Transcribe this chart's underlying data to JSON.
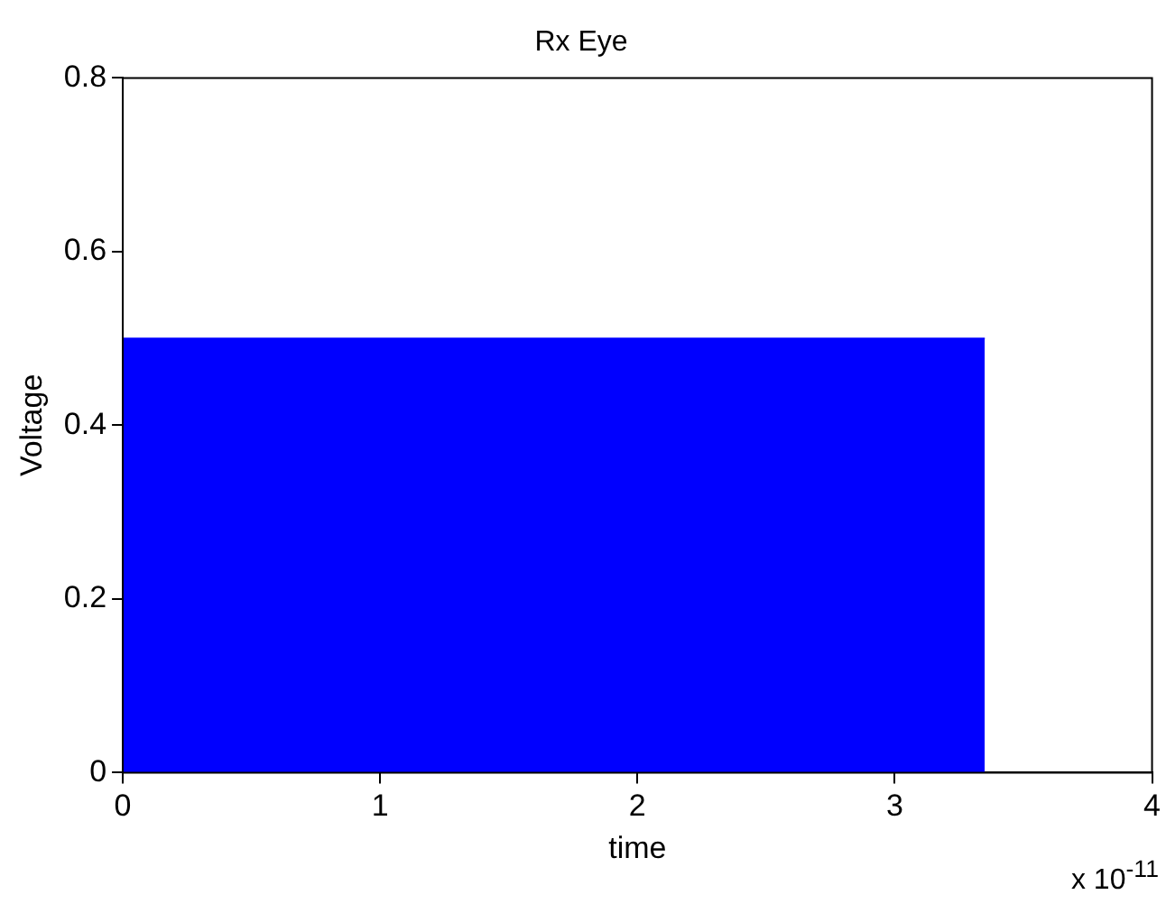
{
  "chart_data": {
    "type": "area",
    "title": "Rx Eye",
    "xlabel": "time",
    "ylabel": "Voltage",
    "xlim": [
      0,
      4
    ],
    "xticks": [
      0,
      1,
      2,
      3,
      4
    ],
    "ylim": [
      0,
      0.8
    ],
    "yticks": [
      0,
      0.2,
      0.4,
      0.6,
      0.8
    ],
    "series": [
      {
        "color": "#0000ff",
        "x": [
          0,
          3.35
        ],
        "values": [
          0.5,
          0.5
        ]
      }
    ],
    "annotations": [
      "x 10$^{-11}$"
    ],
    "grid": false,
    "legend": false
  }
}
